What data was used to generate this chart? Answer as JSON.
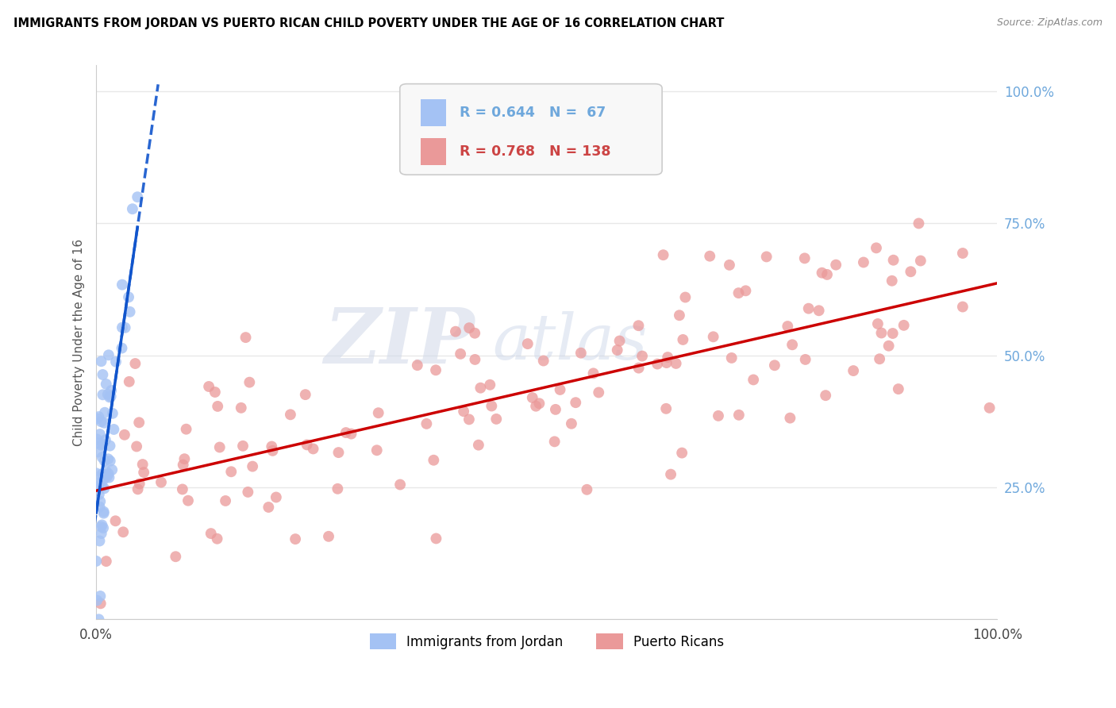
{
  "title": "IMMIGRANTS FROM JORDAN VS PUERTO RICAN CHILD POVERTY UNDER THE AGE OF 16 CORRELATION CHART",
  "source": "Source: ZipAtlas.com",
  "ylabel": "Child Poverty Under the Age of 16",
  "series1_label": "Immigrants from Jordan",
  "series2_label": "Puerto Ricans",
  "series1_color": "#a4c2f4",
  "series2_color": "#ea9999",
  "series1_line_color": "#1155cc",
  "series2_line_color": "#cc0000",
  "series1_R": 0.644,
  "series1_N": 67,
  "series2_R": 0.768,
  "series2_N": 138,
  "watermark_zip": "ZIP",
  "watermark_atlas": "atlas",
  "background_color": "#ffffff",
  "grid_color": "#e8e8e8",
  "ytick_color": "#6fa8dc",
  "title_color": "#000000",
  "source_color": "#888888",
  "legend_text_color1": "#6fa8dc",
  "legend_text_color2": "#cc4444",
  "xlim": [
    0,
    1
  ],
  "ylim": [
    0,
    1.05
  ],
  "ytick_vals": [
    0.0,
    0.25,
    0.5,
    0.75,
    1.0
  ],
  "ytick_labels": [
    "",
    "25.0%",
    "50.0%",
    "75.0%",
    "100.0%"
  ]
}
